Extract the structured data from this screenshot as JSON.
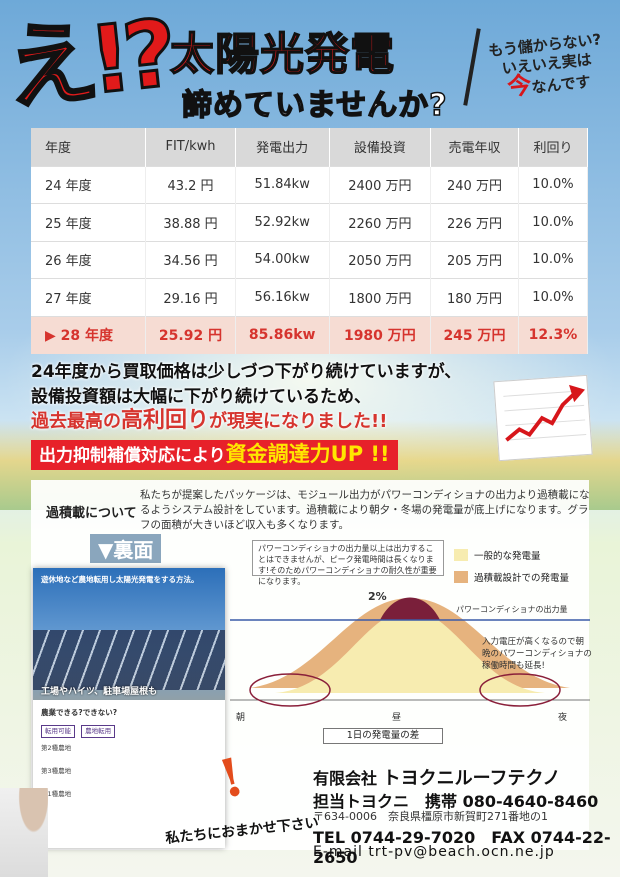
{
  "header": {
    "exclaim": "え!?",
    "line1": "太陽光発電",
    "line2": "諦めていませんか?",
    "side_note_line1": "もう儲からない?",
    "side_note_line2": "いえいえ実は",
    "side_note_em": "今",
    "side_note_line3": "なんです"
  },
  "table": {
    "columns": [
      "年度",
      "FIT/kwh",
      "発電出力",
      "設備投資",
      "売電年収",
      "利回り"
    ],
    "rows": [
      [
        "24 年度",
        "43.2 円",
        "51.84kw",
        "2400 万円",
        "240 万円",
        "10.0%"
      ],
      [
        "25 年度",
        "38.88 円",
        "52.92kw",
        "2260 万円",
        "226 万円",
        "10.0%"
      ],
      [
        "26 年度",
        "34.56 円",
        "54.00kw",
        "2050 万円",
        "205 万円",
        "10.0%"
      ],
      [
        "27 年度",
        "29.16 円",
        "56.16kw",
        "1800 万円",
        "180 万円",
        "10.0%"
      ]
    ],
    "highlight_row": [
      "▶ 28 年度",
      "25.92 円",
      "85.86kw",
      "1980 万円",
      "245 万円",
      "12.3%"
    ]
  },
  "body_text": {
    "line1": "24年度から買取価格は少しづつ下がり続けていますが、",
    "line2": "設備投資額は大幅に下がり続けているため、",
    "line3_a": "過去最高の",
    "line3_big": "高利回り",
    "line3_b": "が現実になりました!!",
    "line4_a": "出力抑制補償対応により",
    "line4_big": "資金調達力UP !!"
  },
  "overloading": {
    "heading": "過積載について",
    "description": "私たちが提案したパッケージは、モジュール出力がパワーコンディショナの出力より過積載になるようシステム設計をしています。過積載により朝夕・冬場の発電量が底上げになります。グラフの面積が大きいほど収入も多くなります。",
    "back_label": "▼裏面"
  },
  "flyer": {
    "heading": "遊休地など農地転用し太陽光発電をする方法。",
    "caption": "工場やハイツ、駐車場屋根も",
    "subheading": "農業できる?できない?",
    "tag1": "転用可能",
    "tag2": "農地転用",
    "tag3": "第2種農地",
    "tag4": "第3種農地",
    "tag5": "第1種農地"
  },
  "chart_data": {
    "type": "area",
    "title": "1日の発電量の差",
    "x_labels": [
      "朝",
      "昼",
      "夜"
    ],
    "series": [
      {
        "name": "一般的な発電量"
      },
      {
        "name": "過積載設計での発電量"
      }
    ],
    "note": "パワーコンディショナの出力量以上は出力することはできませんが、ピーク発電時間は長くなります!そのためパワーコンディショナの耐久性が重要になります。",
    "pcs_line_label": "パワーコンディショナの出力量",
    "peak_label": "2%",
    "right_note": "入力電圧が高くなるので朝晩のパワーコンディショナの稼働時間も延長!",
    "colors": {
      "general": "#f7ecb0",
      "overloaded": "#e6b37e",
      "peak": "#7a1f3a",
      "pcs_line": "#3a5ba8"
    }
  },
  "footer": {
    "brush": "!",
    "slogan": "私たちにおまかせ下さい",
    "company_prefix": "有限会社",
    "company_name": "トヨクニルーフテクノ",
    "contact": "担当トヨクニ　携帯 080-4640-8460",
    "address": "〒634-0006　奈良県橿原市新賀町271番地の1",
    "tel": "TEL 0744-29-7020　FAX 0744-22-2650",
    "email": "E-mail trt-pv@beach.ocn.ne.jp"
  }
}
